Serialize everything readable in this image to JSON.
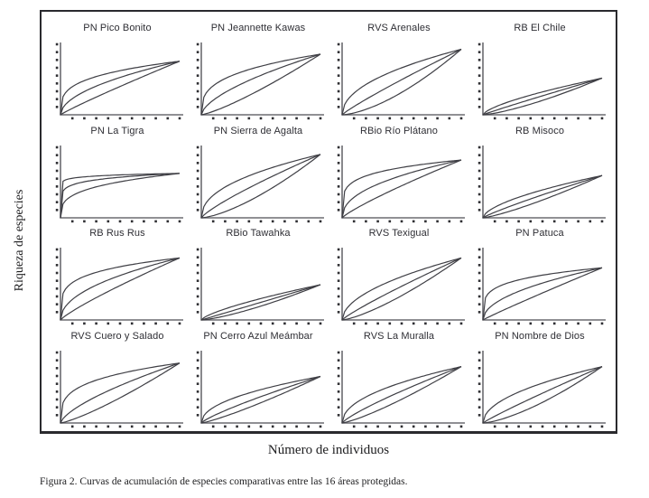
{
  "figure": {
    "y_axis_label": "Riqueza de especies",
    "x_axis_label": "Número de individuos",
    "caption": "Figura 2. Curvas de acumulación de especies comparativas entre las 16 áreas protegidas."
  },
  "chart_data": {
    "type": "line",
    "title": "Figura 2. Curvas de acumulación de especies comparativas entre las 16 áreas protegidas.",
    "xlabel": "Número de individuos",
    "ylabel": "Riqueza de especies",
    "grid_arrangement": "4x4",
    "axes_tick_labels": "none (axes are unlabeled, qualitative accumulation curves)",
    "units": "normalized 0-1 of each subplot axis range",
    "series_per_panel": [
      "upper",
      "mean",
      "lower"
    ],
    "curve_model": "y = end_height * t^k for t in [0,1]; three curves (confidence envelope around mean) converging at origin and right end",
    "panels": [
      {
        "title": "PN Pico Bonito",
        "slug": "pico-bonito",
        "end_height": 0.76,
        "k": {
          "upper": 0.28,
          "mean": 0.52,
          "lower": 0.92
        }
      },
      {
        "title": "PN Jeannette Kawas",
        "slug": "jeannette-kawas",
        "end_height": 0.86,
        "k": {
          "upper": 0.32,
          "mean": 0.62,
          "lower": 1.25
        }
      },
      {
        "title": "RVS Arenales",
        "slug": "arenales",
        "end_height": 0.93,
        "k": {
          "upper": 0.48,
          "mean": 0.9,
          "lower": 1.55
        }
      },
      {
        "title": "RB El Chile",
        "slug": "el-chile",
        "end_height": 0.52,
        "k": {
          "upper": 0.68,
          "mean": 0.95,
          "lower": 1.35
        }
      },
      {
        "title": "PN La Tigra",
        "slug": "la-tigra",
        "end_height": 0.63,
        "k": {
          "upper": 0.05,
          "mean": 0.13,
          "lower": 0.3
        }
      },
      {
        "title": "PN Sierra de Agalta",
        "slug": "sierra-de-agalta",
        "end_height": 0.9,
        "k": {
          "upper": 0.45,
          "mean": 0.82,
          "lower": 1.45
        }
      },
      {
        "title": "RBio Río Plátano",
        "slug": "rio-platano",
        "end_height": 0.82,
        "k": {
          "upper": 0.2,
          "mean": 0.45,
          "lower": 0.85
        }
      },
      {
        "title": "RB Misoco",
        "slug": "misoco",
        "end_height": 0.6,
        "k": {
          "upper": 0.6,
          "mean": 0.88,
          "lower": 1.25
        }
      },
      {
        "title": "RB Rus Rus",
        "slug": "rus-rus",
        "end_height": 0.88,
        "k": {
          "upper": 0.22,
          "mean": 0.48,
          "lower": 0.85
        }
      },
      {
        "title": "RBio Tawahka",
        "slug": "tawahka",
        "end_height": 0.5,
        "k": {
          "upper": 0.72,
          "mean": 1.0,
          "lower": 1.35
        }
      },
      {
        "title": "RVS Texigual",
        "slug": "texigual",
        "end_height": 0.88,
        "k": {
          "upper": 0.52,
          "mean": 0.88,
          "lower": 1.35
        }
      },
      {
        "title": "PN Patuca",
        "slug": "patuca",
        "end_height": 0.74,
        "k": {
          "upper": 0.22,
          "mean": 0.5,
          "lower": 0.95
        }
      },
      {
        "title": "RVS Cuero y Salado",
        "slug": "cuero-y-salado",
        "end_height": 0.85,
        "k": {
          "upper": 0.28,
          "mean": 0.68,
          "lower": 1.25
        }
      },
      {
        "title": "PN Cerro Azul Meámbar",
        "slug": "cerro-azul-meambar",
        "end_height": 0.66,
        "k": {
          "upper": 0.48,
          "mean": 0.82,
          "lower": 1.2
        }
      },
      {
        "title": "RVS La Muralla",
        "slug": "la-muralla",
        "end_height": 0.8,
        "k": {
          "upper": 0.48,
          "mean": 0.82,
          "lower": 1.25
        }
      },
      {
        "title": "PN Nombre de Dios",
        "slug": "nombre-de-dios",
        "end_height": 0.8,
        "k": {
          "upper": 0.5,
          "mean": 0.92,
          "lower": 1.45
        }
      }
    ],
    "layout": {
      "y_ticks": 9,
      "x_ticks": 10,
      "legend": "none",
      "gridlines": "off",
      "line_color": "#3f3f45",
      "axis_color": "#6b6b70",
      "tick_color": "#2f2f33",
      "frame_color": "#2a2a2e",
      "text_color": "#1d1d1f"
    }
  }
}
